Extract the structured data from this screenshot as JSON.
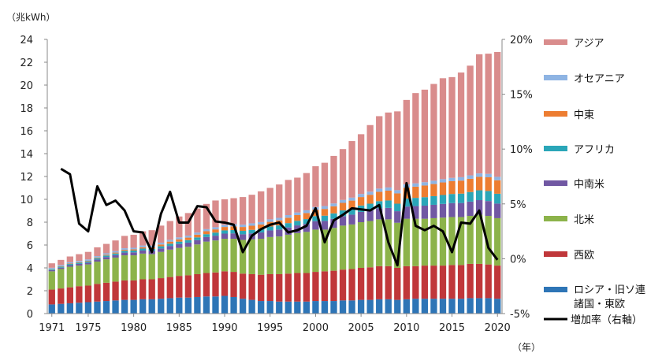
{
  "chart_data": {
    "type": "bar",
    "stacked": true,
    "title": "",
    "y_unit_label": "（兆kWh）",
    "x_unit_label": "（年）",
    "ylim": [
      0,
      24
    ],
    "yticks": [
      0,
      2,
      4,
      6,
      8,
      10,
      12,
      14,
      16,
      18,
      20,
      22,
      24
    ],
    "y2lim": [
      -5,
      20
    ],
    "y2ticks": [
      "-5%",
      "0%",
      "5%",
      "10%",
      "15%",
      "20%"
    ],
    "y2tick_values": [
      -5,
      0,
      5,
      10,
      15,
      20
    ],
    "xtick_labels": [
      "1971",
      "1975",
      "1980",
      "1985",
      "1990",
      "1995",
      "2000",
      "2005",
      "2010",
      "2015",
      "2020"
    ],
    "grid": false,
    "legend_position": "right",
    "x": [
      1971,
      1972,
      1973,
      1974,
      1975,
      1976,
      1977,
      1978,
      1979,
      1980,
      1981,
      1982,
      1983,
      1984,
      1985,
      1986,
      1987,
      1988,
      1989,
      1990,
      1991,
      1992,
      1993,
      1994,
      1995,
      1996,
      1997,
      1998,
      1999,
      2000,
      2001,
      2002,
      2003,
      2004,
      2005,
      2006,
      2007,
      2008,
      2009,
      2010,
      2011,
      2012,
      2013,
      2014,
      2015,
      2016,
      2017,
      2018,
      2019,
      2020
    ],
    "series": [
      {
        "name": "ロシア・旧ソ連諸国・東欧",
        "color": "#2e75b6",
        "values": [
          0.8,
          0.85,
          0.9,
          0.95,
          1.0,
          1.05,
          1.1,
          1.15,
          1.2,
          1.2,
          1.25,
          1.25,
          1.3,
          1.35,
          1.4,
          1.4,
          1.45,
          1.5,
          1.5,
          1.55,
          1.45,
          1.3,
          1.2,
          1.1,
          1.1,
          1.05,
          1.05,
          1.05,
          1.05,
          1.1,
          1.1,
          1.1,
          1.15,
          1.15,
          1.2,
          1.2,
          1.25,
          1.25,
          1.2,
          1.25,
          1.3,
          1.3,
          1.3,
          1.3,
          1.3,
          1.3,
          1.35,
          1.35,
          1.35,
          1.3
        ]
      },
      {
        "name": "西欧",
        "color": "#c0373a",
        "values": [
          1.3,
          1.35,
          1.4,
          1.45,
          1.45,
          1.55,
          1.6,
          1.65,
          1.7,
          1.7,
          1.75,
          1.75,
          1.8,
          1.85,
          1.9,
          1.95,
          2.0,
          2.05,
          2.1,
          2.15,
          2.2,
          2.2,
          2.25,
          2.3,
          2.35,
          2.4,
          2.45,
          2.5,
          2.5,
          2.55,
          2.6,
          2.65,
          2.7,
          2.75,
          2.8,
          2.85,
          2.9,
          2.9,
          2.8,
          2.9,
          2.85,
          2.9,
          2.9,
          2.9,
          2.95,
          2.95,
          3.0,
          3.0,
          2.95,
          2.9
        ]
      },
      {
        "name": "北米",
        "color": "#8cb34a",
        "values": [
          1.6,
          1.7,
          1.8,
          1.8,
          1.85,
          1.95,
          2.05,
          2.1,
          2.2,
          2.2,
          2.25,
          2.2,
          2.3,
          2.4,
          2.45,
          2.5,
          2.6,
          2.75,
          2.8,
          2.85,
          2.9,
          2.95,
          3.05,
          3.15,
          3.25,
          3.3,
          3.4,
          3.5,
          3.6,
          3.7,
          3.65,
          3.75,
          3.85,
          3.9,
          4.0,
          4.05,
          4.1,
          4.1,
          3.95,
          4.15,
          4.15,
          4.1,
          4.15,
          4.2,
          4.2,
          4.2,
          4.2,
          4.3,
          4.25,
          4.15
        ]
      },
      {
        "name": "中南米",
        "color": "#7158a3",
        "values": [
          0.1,
          0.12,
          0.14,
          0.15,
          0.16,
          0.18,
          0.2,
          0.22,
          0.24,
          0.26,
          0.27,
          0.28,
          0.3,
          0.32,
          0.34,
          0.36,
          0.38,
          0.4,
          0.42,
          0.45,
          0.47,
          0.49,
          0.52,
          0.55,
          0.58,
          0.61,
          0.64,
          0.67,
          0.7,
          0.74,
          0.76,
          0.79,
          0.83,
          0.86,
          0.9,
          0.93,
          0.97,
          1.0,
          1.01,
          1.07,
          1.11,
          1.15,
          1.17,
          1.2,
          1.22,
          1.23,
          1.25,
          1.28,
          1.3,
          1.28
        ]
      },
      {
        "name": "アフリカ",
        "color": "#2aa6b8",
        "values": [
          0.08,
          0.09,
          0.1,
          0.1,
          0.11,
          0.12,
          0.13,
          0.14,
          0.15,
          0.16,
          0.17,
          0.18,
          0.19,
          0.2,
          0.21,
          0.22,
          0.24,
          0.25,
          0.27,
          0.28,
          0.29,
          0.3,
          0.31,
          0.32,
          0.34,
          0.36,
          0.38,
          0.4,
          0.42,
          0.44,
          0.46,
          0.48,
          0.5,
          0.53,
          0.56,
          0.59,
          0.62,
          0.65,
          0.66,
          0.7,
          0.72,
          0.74,
          0.76,
          0.78,
          0.8,
          0.82,
          0.84,
          0.86,
          0.88,
          0.86
        ]
      },
      {
        "name": "中東",
        "color": "#ed7d31",
        "values": [
          0.03,
          0.04,
          0.04,
          0.05,
          0.05,
          0.06,
          0.07,
          0.08,
          0.09,
          0.1,
          0.12,
          0.14,
          0.16,
          0.18,
          0.2,
          0.22,
          0.24,
          0.26,
          0.28,
          0.3,
          0.32,
          0.34,
          0.36,
          0.38,
          0.41,
          0.44,
          0.47,
          0.5,
          0.53,
          0.56,
          0.59,
          0.62,
          0.66,
          0.7,
          0.74,
          0.78,
          0.82,
          0.86,
          0.9,
          0.95,
          0.98,
          1.02,
          1.06,
          1.1,
          1.12,
          1.14,
          1.16,
          1.18,
          1.2,
          1.18
        ]
      },
      {
        "name": "オセアニア",
        "color": "#8eb4e3",
        "values": [
          0.1,
          0.1,
          0.11,
          0.11,
          0.12,
          0.12,
          0.13,
          0.13,
          0.14,
          0.14,
          0.15,
          0.15,
          0.16,
          0.16,
          0.17,
          0.17,
          0.18,
          0.18,
          0.19,
          0.19,
          0.2,
          0.2,
          0.21,
          0.21,
          0.22,
          0.22,
          0.23,
          0.23,
          0.24,
          0.24,
          0.25,
          0.25,
          0.26,
          0.26,
          0.27,
          0.27,
          0.28,
          0.28,
          0.28,
          0.29,
          0.29,
          0.29,
          0.29,
          0.29,
          0.29,
          0.3,
          0.3,
          0.3,
          0.3,
          0.3
        ]
      },
      {
        "name": "アジア",
        "color": "#d98c8c",
        "values": [
          0.39,
          0.45,
          0.51,
          0.59,
          0.66,
          0.77,
          0.82,
          0.93,
          1.08,
          1.14,
          1.24,
          1.35,
          1.49,
          1.64,
          1.83,
          1.98,
          2.11,
          2.21,
          2.34,
          2.23,
          2.27,
          2.42,
          2.5,
          2.69,
          2.75,
          2.92,
          3.08,
          3.05,
          3.26,
          3.57,
          3.79,
          4.16,
          4.45,
          4.95,
          5.23,
          5.83,
          6.34,
          6.56,
          6.9,
          7.39,
          7.9,
          8.1,
          8.47,
          8.83,
          8.82,
          9.16,
          9.6,
          10.43,
          10.52,
          10.93
        ]
      }
    ],
    "line": {
      "name": "増加率（右軸）",
      "color": "#000000",
      "axis": "right",
      "values": [
        8.2,
        7.7,
        3.2,
        2.5,
        6.6,
        4.9,
        5.3,
        4.4,
        2.5,
        2.4,
        0.6,
        4.1,
        6.1,
        3.3,
        3.3,
        4.8,
        4.7,
        3.4,
        3.3,
        3.1,
        0.6,
        2.1,
        2.7,
        3.1,
        3.3,
        2.4,
        2.6,
        3.0,
        4.6,
        1.5,
        3.5,
        4.0,
        4.6,
        4.5,
        4.4,
        4.9,
        1.5,
        -0.6,
        6.9,
        3.0,
        2.6,
        3.0,
        2.5,
        0.6,
        3.3,
        3.2,
        4.4,
        1.0,
        -0.1
      ]
    }
  },
  "legend": [
    {
      "label": "アジア",
      "color": "#d98c8c",
      "kind": "box"
    },
    {
      "label": "オセアニア",
      "color": "#8eb4e3",
      "kind": "box"
    },
    {
      "label": "中東",
      "color": "#ed7d31",
      "kind": "box"
    },
    {
      "label": "アフリカ",
      "color": "#2aa6b8",
      "kind": "box"
    },
    {
      "label": "中南米",
      "color": "#7158a3",
      "kind": "box"
    },
    {
      "label": "北米",
      "color": "#8cb34a",
      "kind": "box"
    },
    {
      "label": "西欧",
      "color": "#c0373a",
      "kind": "box"
    },
    {
      "label": "ロシア・旧ソ連",
      "label2": "諸国・東欧",
      "color": "#2e75b6",
      "kind": "box"
    },
    {
      "label": "増加率（右軸）",
      "color": "#000000",
      "kind": "line"
    }
  ]
}
